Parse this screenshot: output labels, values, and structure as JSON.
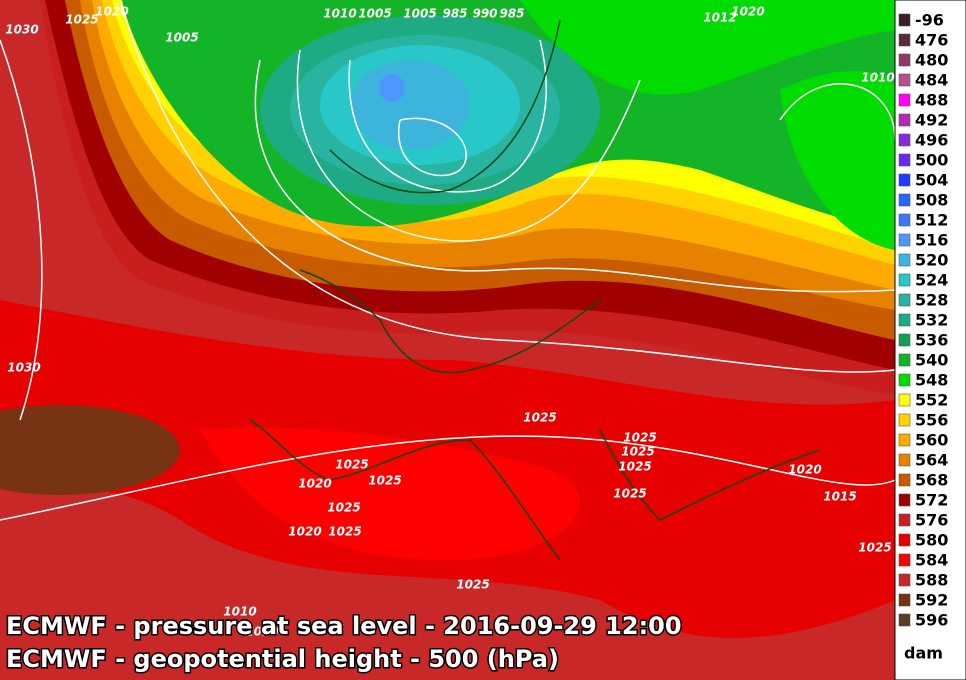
{
  "captions": [
    "ECMWF - pressure at sea level - 2016-09-29 12:00",
    "ECMWF - geopotential height - 500 (hPa)"
  ],
  "legend": {
    "unit": "dam",
    "items": [
      {
        "label": "-96",
        "color": "#3c1e28"
      },
      {
        "label": "476",
        "color": "#5a2a3c"
      },
      {
        "label": "480",
        "color": "#8c3c64"
      },
      {
        "label": "484",
        "color": "#b4508c"
      },
      {
        "label": "488",
        "color": "#ff00ff"
      },
      {
        "label": "492",
        "color": "#b428b4"
      },
      {
        "label": "496",
        "color": "#8c28dc"
      },
      {
        "label": "500",
        "color": "#6428f0"
      },
      {
        "label": "504",
        "color": "#1e3cff"
      },
      {
        "label": "508",
        "color": "#2864ff"
      },
      {
        "label": "512",
        "color": "#3c78ff"
      },
      {
        "label": "516",
        "color": "#5096ff"
      },
      {
        "label": "520",
        "color": "#3cb4dc"
      },
      {
        "label": "524",
        "color": "#28c8c8"
      },
      {
        "label": "528",
        "color": "#28b4a0"
      },
      {
        "label": "532",
        "color": "#1eaa82"
      },
      {
        "label": "536",
        "color": "#14a050"
      },
      {
        "label": "540",
        "color": "#14b428"
      },
      {
        "label": "548",
        "color": "#00dc00"
      },
      {
        "label": "552",
        "color": "#ffff00"
      },
      {
        "label": "556",
        "color": "#ffd200"
      },
      {
        "label": "560",
        "color": "#ffaa00"
      },
      {
        "label": "564",
        "color": "#e68200"
      },
      {
        "label": "568",
        "color": "#c85a00"
      },
      {
        "label": "572",
        "color": "#a00000"
      },
      {
        "label": "576",
        "color": "#c81e1e"
      },
      {
        "label": "580",
        "color": "#e60000"
      },
      {
        "label": "584",
        "color": "#ff0000"
      },
      {
        "label": "588",
        "color": "#c82828"
      },
      {
        "label": "592",
        "color": "#783214"
      },
      {
        "label": "596",
        "color": "#5a3c28"
      }
    ]
  },
  "isobar_labels": [
    "1030",
    "1025",
    "1020",
    "1005",
    "1010",
    "1005",
    "1005",
    "985",
    "990",
    "985",
    "1012",
    "1020",
    "1010",
    "1030",
    "1025",
    "1025",
    "1025",
    "1025",
    "1025",
    "1025",
    "1020",
    "1025",
    "1025",
    "1025",
    "1025",
    "1020",
    "1020",
    "1015",
    "1025",
    "1010",
    "1020"
  ]
}
